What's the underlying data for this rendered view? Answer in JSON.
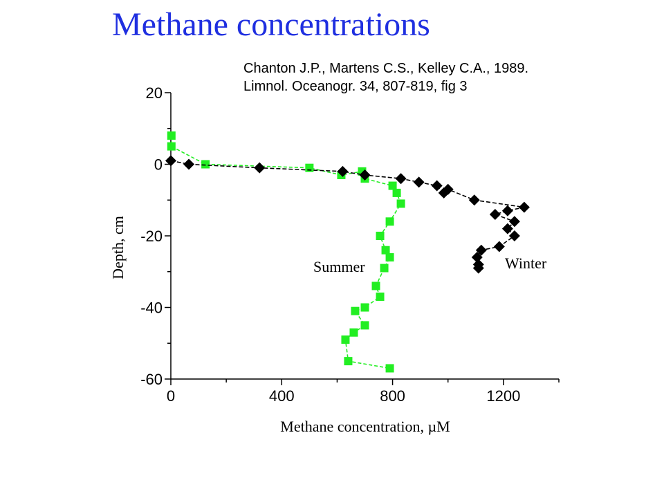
{
  "slide": {
    "title": "Methane concentrations",
    "citation_line1": "Chanton J.P., Martens C.S., Kelley C.A.,  1989.",
    "citation_line2": "Limnol. Oceanogr. 34, 807-819, fig 3"
  },
  "colors": {
    "title": "#1f2fe0",
    "summer": "#22ee22",
    "winter": "#000000"
  },
  "chart_data": {
    "type": "scatter",
    "xlabel": "Methane concentration, µM",
    "ylabel": "Depth, cm",
    "xlim": [
      0,
      1400
    ],
    "ylim": [
      -60,
      20
    ],
    "xticks": [
      0,
      400,
      800,
      1200
    ],
    "yticks": [
      20,
      0,
      -20,
      -40,
      -60
    ],
    "x_tick_labels": [
      "0",
      "400",
      "800",
      "1200"
    ],
    "y_tick_labels": [
      "20",
      "0",
      "-20",
      "-40",
      "-60"
    ],
    "series": [
      {
        "name": "Summer",
        "marker": "square",
        "color": "#22ee22",
        "points": [
          [
            2,
            8
          ],
          [
            2,
            5
          ],
          [
            125,
            0
          ],
          [
            500,
            -1
          ],
          [
            615,
            -3
          ],
          [
            690,
            -2
          ],
          [
            700,
            -4
          ],
          [
            800,
            -6
          ],
          [
            815,
            -8
          ],
          [
            830,
            -11
          ],
          [
            790,
            -16
          ],
          [
            755,
            -20
          ],
          [
            775,
            -24
          ],
          [
            790,
            -26
          ],
          [
            770,
            -29
          ],
          [
            740,
            -34
          ],
          [
            755,
            -37
          ],
          [
            700,
            -40
          ],
          [
            665,
            -41
          ],
          [
            700,
            -45
          ],
          [
            660,
            -47
          ],
          [
            630,
            -49
          ],
          [
            640,
            -55
          ],
          [
            790,
            -57
          ]
        ]
      },
      {
        "name": "Winter",
        "marker": "diamond",
        "color": "#000000",
        "points": [
          [
            0,
            1
          ],
          [
            65,
            0
          ],
          [
            320,
            -1
          ],
          [
            620,
            -2
          ],
          [
            700,
            -3
          ],
          [
            830,
            -4
          ],
          [
            895,
            -5
          ],
          [
            960,
            -6
          ],
          [
            985,
            -8
          ],
          [
            1000,
            -7
          ],
          [
            1095,
            -10
          ],
          [
            1275,
            -12
          ],
          [
            1215,
            -13
          ],
          [
            1170,
            -14
          ],
          [
            1240,
            -16
          ],
          [
            1215,
            -18
          ],
          [
            1240,
            -20
          ],
          [
            1185,
            -23
          ],
          [
            1120,
            -24
          ],
          [
            1105,
            -26
          ],
          [
            1110,
            -28
          ],
          [
            1110,
            -29
          ]
        ]
      }
    ]
  }
}
